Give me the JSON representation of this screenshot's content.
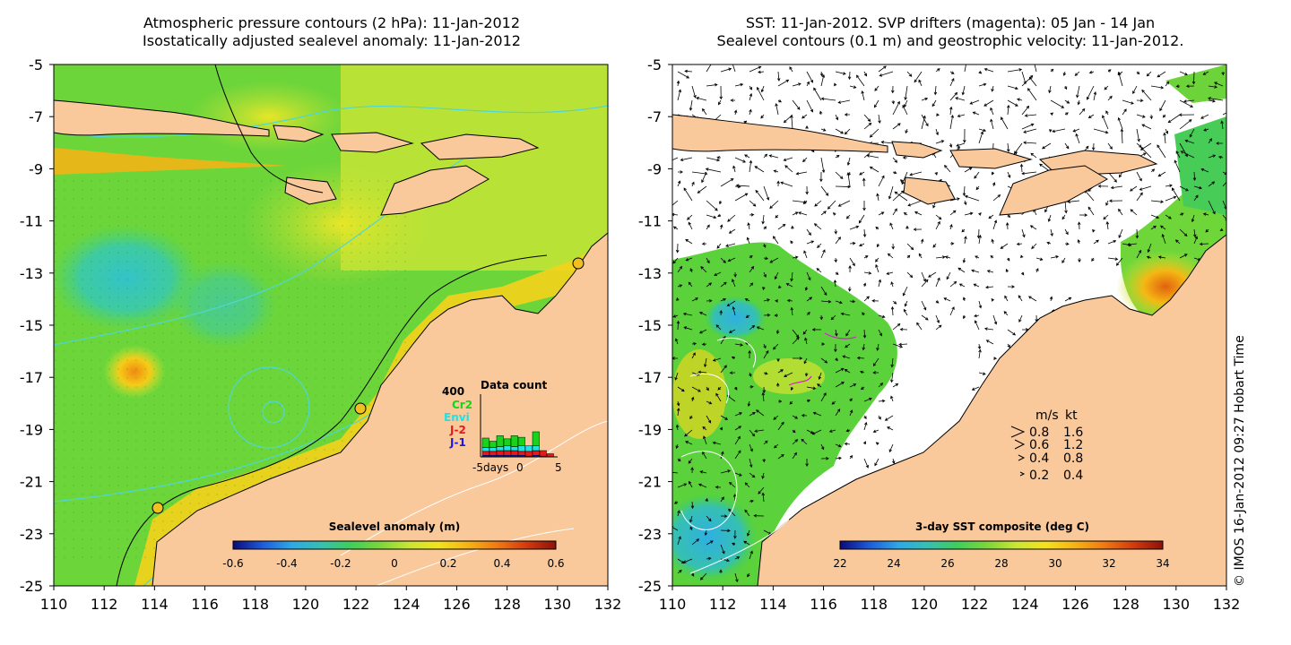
{
  "left_panel": {
    "title_line1": "Atmospheric pressure contours (2 hPa): 11-Jan-2012",
    "title_line2": "Isostatically adjusted sealevel anomaly: 11-Jan-2012",
    "colorbar": {
      "title": "Sealevel anomaly (m)",
      "ticks": [
        "-0.6",
        "-0.4",
        "-0.2",
        "0",
        "0.2",
        "0.4",
        "0.6"
      ],
      "colors": [
        "#0b0b7a",
        "#1e5adb",
        "#2ea9e6",
        "#35c0b0",
        "#3ecf5a",
        "#7bd63a",
        "#c9e634",
        "#f5e21c",
        "#f6b414",
        "#f07a12",
        "#d43a0e",
        "#8e1208"
      ]
    },
    "data_count": {
      "title": "Data count",
      "max_label": "400",
      "series_labels": [
        {
          "text": "Cr2",
          "color": "#19d219"
        },
        {
          "text": "Envi",
          "color": "#21e1e1"
        },
        {
          "text": "J-2",
          "color": "#e61919"
        },
        {
          "text": "J-1",
          "color": "#1919e6"
        }
      ],
      "x_ticks": [
        "-5days",
        "0",
        "5"
      ],
      "bars": [
        {
          "day": -5,
          "j1": 10,
          "j2": 25,
          "envi": 25,
          "cr2": 60
        },
        {
          "day": -4,
          "j1": 10,
          "j2": 25,
          "envi": 25,
          "cr2": 40
        },
        {
          "day": -3,
          "j1": 10,
          "j2": 30,
          "envi": 25,
          "cr2": 70
        },
        {
          "day": -2,
          "j1": 10,
          "j2": 30,
          "envi": 30,
          "cr2": 45
        },
        {
          "day": -1,
          "j1": 10,
          "j2": 30,
          "envi": 25,
          "cr2": 70
        },
        {
          "day": 0,
          "j1": 10,
          "j2": 25,
          "envi": 35,
          "cr2": 55
        },
        {
          "day": 1,
          "j1": 5,
          "j2": 30,
          "envi": 35,
          "cr2": 0
        },
        {
          "day": 2,
          "j1": 10,
          "j2": 30,
          "envi": 30,
          "cr2": 90
        },
        {
          "day": 3,
          "j1": 5,
          "j2": 35,
          "envi": 0,
          "cr2": 0
        },
        {
          "day": 4,
          "j1": 0,
          "j2": 20,
          "envi": 0,
          "cr2": 0
        }
      ],
      "y_max": 400
    }
  },
  "right_panel": {
    "title_line1": "SST: 11-Jan-2012. SVP drifters (magenta): 05 Jan - 14 Jan",
    "title_line2": "Sealevel contours (0.1 m) and geostrophic velocity: 11-Jan-2012.",
    "colorbar": {
      "title": "3-day SST composite (deg C)",
      "ticks": [
        "22",
        "24",
        "26",
        "28",
        "30",
        "32",
        "34"
      ],
      "colors": [
        "#0b0b7a",
        "#1e5adb",
        "#2ea9e6",
        "#35c0b0",
        "#3ecf5a",
        "#7bd63a",
        "#c9e634",
        "#f5e21c",
        "#f6b414",
        "#f07a12",
        "#d43a0e",
        "#8e1208"
      ]
    },
    "velocity_legend": {
      "header_ms": "m/s",
      "header_kt": "kt",
      "rows": [
        {
          "ms": "0.8",
          "kt": "1.6"
        },
        {
          "ms": "0.6",
          "kt": "1.2"
        },
        {
          "ms": "0.4",
          "kt": "0.8"
        },
        {
          "ms": "0.2",
          "kt": "0.4"
        }
      ]
    }
  },
  "axes": {
    "lon_ticks": [
      "110",
      "112",
      "114",
      "116",
      "118",
      "120",
      "122",
      "124",
      "126",
      "128",
      "130",
      "132"
    ],
    "lat_ticks": [
      "-5",
      "-7",
      "-9",
      "-11",
      "-13",
      "-15",
      "-17",
      "-19",
      "-21",
      "-23",
      "-25"
    ],
    "lon_range": [
      110,
      132
    ],
    "lat_range": [
      -25,
      -5
    ]
  },
  "copyright": "© IMOS 16-Jan-2012 09:27 Hobart Time",
  "colors": {
    "land": "#f9c89b",
    "ocean_left_base": "#5fd23c",
    "ocean_right_blank": "#ffffff",
    "contour_cyan": "#4fd6d6",
    "outline": "#000000"
  }
}
